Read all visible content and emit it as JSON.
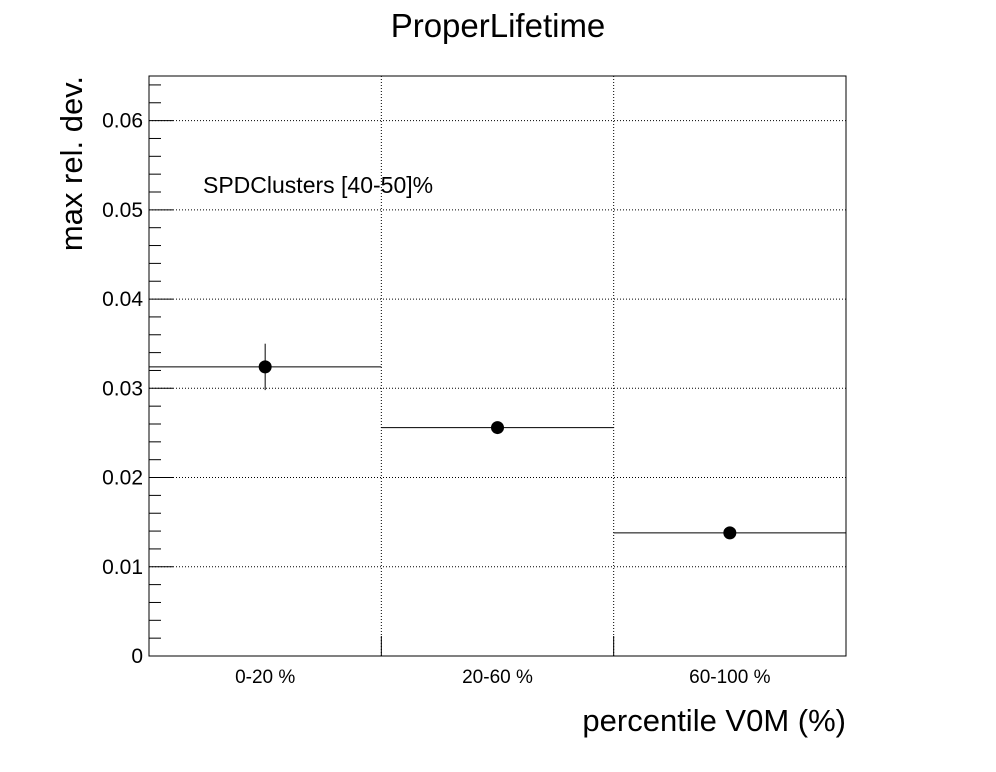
{
  "chart_data": {
    "type": "scatter",
    "title": "ProperLifetime",
    "xlabel": "percentile V0M (%)",
    "ylabel": "max rel. dev.",
    "categories": [
      "0-20 %",
      "20-60 %",
      "60-100 %"
    ],
    "ylim": [
      0,
      0.065
    ],
    "yticks": [
      0,
      0.01,
      0.02,
      0.03,
      0.04,
      0.05,
      0.06
    ],
    "ytick_labels": [
      "0",
      "0.01",
      "0.02",
      "0.03",
      "0.04",
      "0.05",
      "0.06"
    ],
    "series": [
      {
        "values": [
          0.0324,
          0.0256,
          0.0138
        ],
        "errors": [
          0.0026,
          0.0003,
          0.0002
        ]
      }
    ],
    "annotation": "SPDClusters [40-50]%",
    "grid": true,
    "marker_color": "#000000"
  }
}
